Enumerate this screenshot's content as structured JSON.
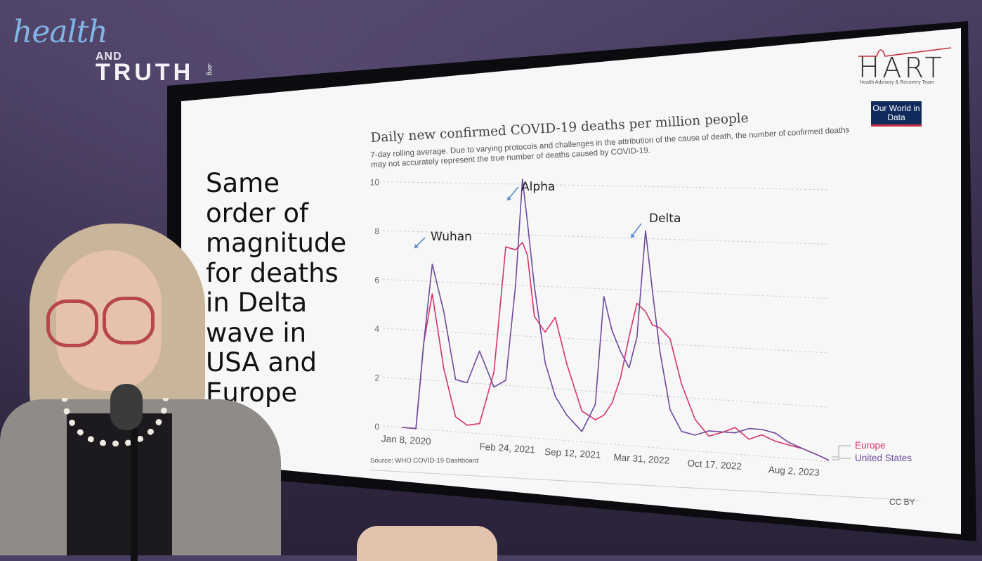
{
  "logo": {
    "script": "health",
    "and": "AND",
    "truth": "TRUTH",
    "org": ".org"
  },
  "slide": {
    "text": "Same order of magnitude for deaths in Delta wave in USA and Europe",
    "hart_word": "HART",
    "hart_sub": "Health Advisory & Recovery Team",
    "owid": "Our World in Data",
    "source": "Source: WHO COVID-19 Dashboard",
    "license": "CC BY"
  },
  "chart_data": {
    "type": "line",
    "title": "Daily new confirmed COVID-19 deaths per million people",
    "subtitle": "7-day rolling average. Due to varying protocols and challenges in the attribution of the cause of death, the number of confirmed deaths may not accurately represent the true number of deaths caused by COVID-19.",
    "ylim": [
      0,
      10
    ],
    "yticks": [
      "0",
      "2",
      "4",
      "6",
      "8",
      "10"
    ],
    "xticks": [
      "Jan 8, 2020",
      "Feb 24, 2021",
      "Sep 12, 2021",
      "Mar 31, 2022",
      "Oct 17, 2022",
      "Aug 2, 2023"
    ],
    "grid": "horizontal dashed",
    "legend_position": "right",
    "x": [
      "2020-01-08",
      "2020-02-20",
      "2020-03-15",
      "2020-04-10",
      "2020-05-15",
      "2020-06-20",
      "2020-07-25",
      "2020-09-01",
      "2020-10-15",
      "2020-11-20",
      "2020-12-20",
      "2021-01-10",
      "2021-01-25",
      "2021-02-15",
      "2021-03-20",
      "2021-04-20",
      "2021-05-25",
      "2021-07-10",
      "2021-08-20",
      "2021-09-15",
      "2021-10-10",
      "2021-11-05",
      "2021-12-01",
      "2021-12-25",
      "2022-01-20",
      "2022-02-10",
      "2022-03-05",
      "2022-04-05",
      "2022-05-10",
      "2022-06-20",
      "2022-08-01",
      "2022-09-15",
      "2022-10-20",
      "2022-12-01",
      "2023-01-10",
      "2023-02-20",
      "2023-04-01",
      "2023-05-15",
      "2023-07-01",
      "2023-08-02"
    ],
    "series": [
      {
        "name": "Europe",
        "color": "#d6336c",
        "values": [
          0,
          0,
          3.5,
          5.5,
          2.5,
          0.6,
          0.3,
          0.4,
          2.5,
          7.5,
          7.4,
          7.7,
          7.2,
          4.8,
          4.2,
          4.8,
          3,
          1.2,
          0.9,
          1.1,
          1.6,
          2.6,
          4.2,
          5.5,
          5.2,
          4.7,
          4.6,
          4.2,
          2.5,
          1.2,
          0.6,
          0.8,
          1.0,
          0.6,
          0.8,
          0.6,
          0.5,
          0.4,
          0.2,
          0.05
        ]
      },
      {
        "name": "United States",
        "color": "#6d4a9c",
        "values": [
          0,
          0,
          3.5,
          6.7,
          4.8,
          2.1,
          2.0,
          3.3,
          1.9,
          2.2,
          6.0,
          10.2,
          8.5,
          6.0,
          3.0,
          1.7,
          1.0,
          0.4,
          1.5,
          5.7,
          4.4,
          3.6,
          3.0,
          4.2,
          8.3,
          6.0,
          3.7,
          1.5,
          0.7,
          0.6,
          0.8,
          0.8,
          0.8,
          1.0,
          1.0,
          0.9,
          0.6,
          0.4,
          0.2,
          0.05
        ]
      }
    ],
    "annotations": [
      "Wuhan",
      "Alpha",
      "Delta"
    ]
  }
}
